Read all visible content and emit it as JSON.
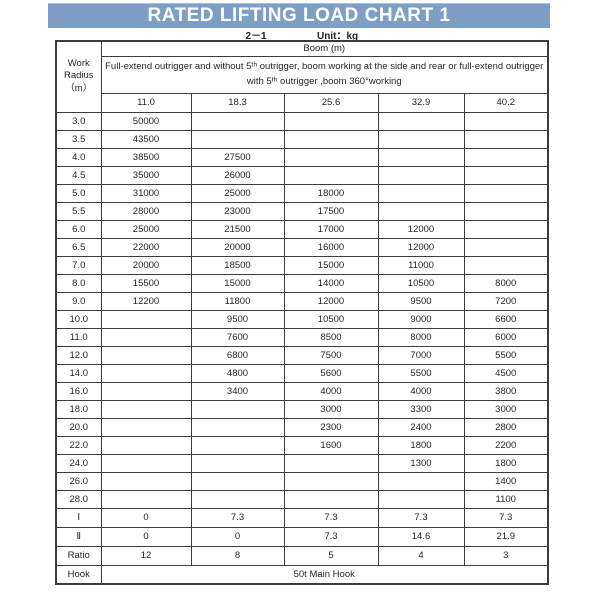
{
  "colors": {
    "title_bg": "#7d9fc5",
    "title_text": "#ffffff",
    "border": "#3c3c3c",
    "text": "#262626"
  },
  "title": "RATED LIFTING LOAD CHART 1",
  "subtitle": {
    "sheet_no": "2－1",
    "unit": "Unit：kg"
  },
  "table": {
    "corner": {
      "lines": [
        "Work",
        "Radius",
        "（m）"
      ]
    },
    "boom_header": "Boom (m)",
    "note": "Full-extend outrigger and without 5ᵗʰ outrigger, boom working at the side and rear or full-extend outrigger with 5ᵗʰ outrigger ,boom 360°working",
    "boom_lengths": [
      "11.0",
      "18.3",
      "25.6",
      "32.9",
      "40.2"
    ],
    "load_rows": [
      {
        "radius": "3.0",
        "values": [
          "50000",
          "",
          "",
          "",
          ""
        ]
      },
      {
        "radius": "3.5",
        "values": [
          "43500",
          "",
          "",
          "",
          ""
        ]
      },
      {
        "radius": "4.0",
        "values": [
          "38500",
          "27500",
          "",
          "",
          ""
        ]
      },
      {
        "radius": "4.5",
        "values": [
          "35000",
          "26000",
          "",
          "",
          ""
        ]
      },
      {
        "radius": "5.0",
        "values": [
          "31000",
          "25000",
          "18000",
          "",
          ""
        ]
      },
      {
        "radius": "5.5",
        "values": [
          "28000",
          "23000",
          "17500",
          "",
          ""
        ]
      },
      {
        "radius": "6.0",
        "values": [
          "25000",
          "21500",
          "17000",
          "12000",
          ""
        ]
      },
      {
        "radius": "6.5",
        "values": [
          "22000",
          "20000",
          "16000",
          "12000",
          ""
        ]
      },
      {
        "radius": "7.0",
        "values": [
          "20000",
          "18500",
          "15000",
          "11000",
          ""
        ]
      },
      {
        "radius": "8.0",
        "values": [
          "15500",
          "15000",
          "14000",
          "10500",
          "8000"
        ]
      },
      {
        "radius": "9.0",
        "values": [
          "12200",
          "11800",
          "12000",
          "9500",
          "7200"
        ]
      },
      {
        "radius": "10.0",
        "values": [
          "",
          "9500",
          "10500",
          "9000",
          "6600"
        ]
      },
      {
        "radius": "11.0",
        "values": [
          "",
          "7600",
          "8500",
          "8000",
          "6000"
        ]
      },
      {
        "radius": "12.0",
        "values": [
          "",
          "6800",
          "7500",
          "7000",
          "5500"
        ]
      },
      {
        "radius": "14.0",
        "values": [
          "",
          "4800",
          "5600",
          "5500",
          "4500"
        ]
      },
      {
        "radius": "16.0",
        "values": [
          "",
          "3400",
          "4000",
          "4000",
          "3800"
        ]
      },
      {
        "radius": "18.0",
        "values": [
          "",
          "",
          "3000",
          "3300",
          "3000"
        ]
      },
      {
        "radius": "20.0",
        "values": [
          "",
          "",
          "2300",
          "2400",
          "2800"
        ]
      },
      {
        "radius": "22.0",
        "values": [
          "",
          "",
          "1600",
          "1800",
          "2200"
        ]
      },
      {
        "radius": "24.0",
        "values": [
          "",
          "",
          "",
          "1300",
          "1800"
        ]
      },
      {
        "radius": "26.0",
        "values": [
          "",
          "",
          "",
          "",
          "1400"
        ]
      },
      {
        "radius": "28.0",
        "values": [
          "",
          "",
          "",
          "",
          "1100"
        ]
      }
    ],
    "footer_rows": [
      {
        "label": "Ⅰ",
        "values": [
          "0",
          "7.3",
          "7.3",
          "7.3",
          "7.3"
        ]
      },
      {
        "label": "Ⅱ",
        "values": [
          "0",
          "0",
          "7.3",
          "14.6",
          "21.9"
        ]
      },
      {
        "label": "Ratio",
        "values": [
          "12",
          "8",
          "5",
          "4",
          "3"
        ]
      }
    ],
    "hook_row": {
      "label": "Hook",
      "value": "50t Main Hook"
    }
  }
}
